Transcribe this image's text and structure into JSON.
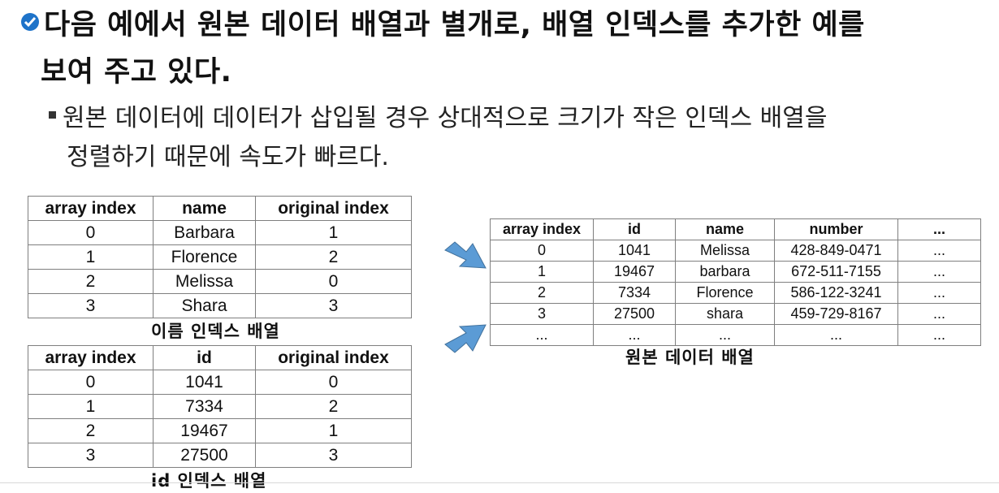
{
  "heading": {
    "line1": "다음 예에서 원본 데이터 배열과 별개로, 배열 인덱스를 추가한 예를",
    "line2": "보여 주고 있다."
  },
  "bullet": {
    "line1": "원본 데이터에 데이터가 삽입될 경우 상대적으로 크기가 작은 인덱스 배열을",
    "line2": "정렬하기 때문에 속도가 빠르다."
  },
  "name_index": {
    "caption": "이름 인덱스 배열",
    "headers": [
      "array index",
      "name",
      "original index"
    ],
    "rows": [
      [
        "0",
        "Barbara",
        "1"
      ],
      [
        "1",
        "Florence",
        "2"
      ],
      [
        "2",
        "Melissa",
        "0"
      ],
      [
        "3",
        "Shara",
        "3"
      ]
    ]
  },
  "id_index": {
    "caption": "id 인덱스 배열",
    "headers": [
      "array index",
      "id",
      "original index"
    ],
    "rows": [
      [
        "0",
        "1041",
        "0"
      ],
      [
        "1",
        "7334",
        "2"
      ],
      [
        "2",
        "19467",
        "1"
      ],
      [
        "3",
        "27500",
        "3"
      ]
    ]
  },
  "original": {
    "caption": "원본 데이터 배열",
    "headers": [
      "array index",
      "id",
      "name",
      "number",
      "..."
    ],
    "rows": [
      [
        "0",
        "1041",
        "Melissa",
        "428-849-0471",
        "..."
      ],
      [
        "1",
        "19467",
        "barbara",
        "672-511-7155",
        "..."
      ],
      [
        "2",
        "7334",
        "Florence",
        "586-122-3241",
        "..."
      ],
      [
        "3",
        "27500",
        "shara",
        "459-729-8167",
        "..."
      ],
      [
        "...",
        "...",
        "...",
        "...",
        "..."
      ]
    ]
  },
  "colors": {
    "arrow": "#5b9bd5",
    "check": "#1e73c9"
  }
}
